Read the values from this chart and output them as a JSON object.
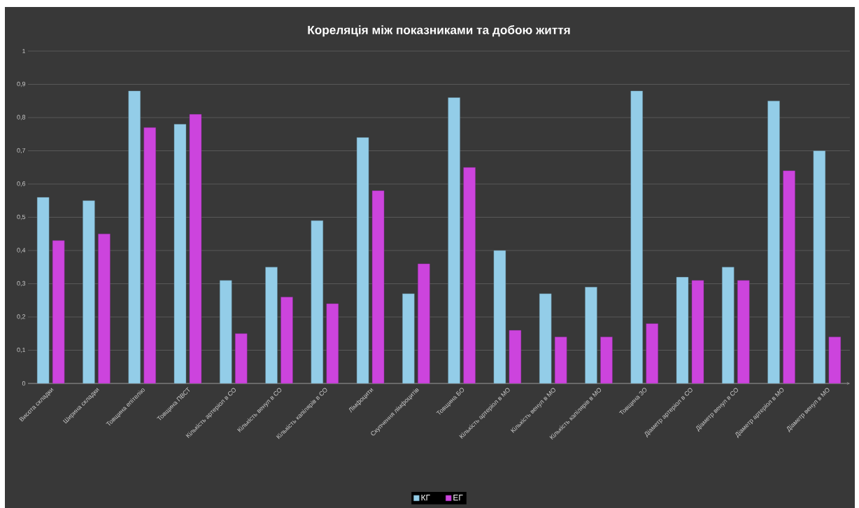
{
  "chart_data": {
    "type": "bar",
    "title": "Кореляція між показниками та добою життя",
    "categories": [
      "Висота складки",
      "Ширина складки",
      "Товщина епітелію",
      "Товщина ПВСТ",
      "Кількість артеріол в СО",
      "Кількість венул в СО",
      "Кількість капілярів в СО",
      "Лімфоцити",
      "Скупчення лімфоцитів",
      "Товщина БО",
      "Кількість артеріол в МО",
      "Кількість венул в МО",
      "Кількість капілярів в МО",
      "Товщина ЗО",
      "Діаметр артеріол в СО",
      "Діаметр венул в СО",
      "Діаметр артеріол в МО",
      "Діаметр венул в МО"
    ],
    "series": [
      {
        "name": "КГ",
        "color": "#93cde8",
        "values": [
          0.56,
          0.55,
          0.88,
          0.78,
          0.31,
          0.35,
          0.49,
          0.74,
          0.27,
          0.86,
          0.4,
          0.27,
          0.29,
          0.88,
          0.32,
          0.35,
          0.85,
          0.7
        ]
      },
      {
        "name": "ЕГ",
        "color": "#cc44dd",
        "values": [
          0.43,
          0.45,
          0.77,
          0.81,
          0.15,
          0.26,
          0.24,
          0.58,
          0.36,
          0.65,
          0.16,
          0.14,
          0.14,
          0.18,
          0.31,
          0.31,
          0.64,
          0.14
        ]
      }
    ],
    "ylim": [
      0,
      1
    ],
    "yticks": [
      0,
      {
        "value": 0.1,
        "label": "0,1"
      },
      {
        "value": 0.2,
        "label": "0,2"
      },
      {
        "value": 0.3,
        "label": "0,3"
      },
      {
        "value": 0.4,
        "label": "0,4"
      },
      {
        "value": 0.5,
        "label": "0,5"
      },
      {
        "value": 0.6,
        "label": "0,6"
      },
      {
        "value": 0.7,
        "label": "0,7"
      },
      {
        "value": 0.8,
        "label": "0,8"
      },
      {
        "value": 0.9,
        "label": "0,9"
      },
      1
    ],
    "grid": "y",
    "legend": "bottom"
  }
}
